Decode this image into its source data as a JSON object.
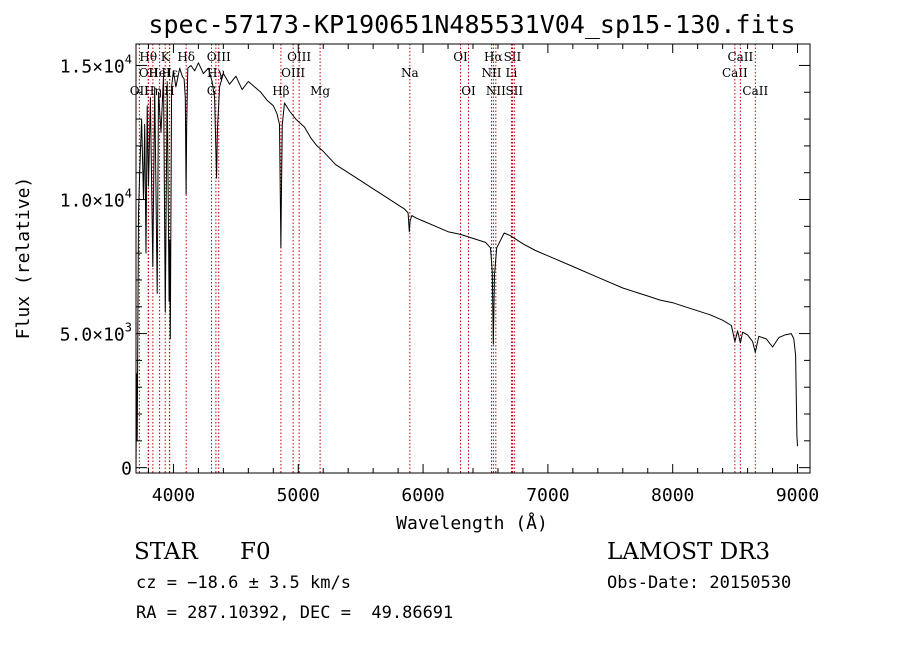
{
  "chart_data": {
    "type": "line",
    "title": "spec-57173-KP190651N485531V04_sp15-130.fits",
    "xlabel": "Wavelength (Å)",
    "ylabel": "Flux (relative)",
    "xlim": [
      3700,
      9100
    ],
    "ylim": [
      -200,
      15800
    ],
    "x_ticks": [
      4000,
      5000,
      6000,
      7000,
      8000,
      9000
    ],
    "x_tick_labels": [
      "4000",
      "5000",
      "6000",
      "7000",
      "8000",
      "9000"
    ],
    "y_ticks": [
      0,
      5000,
      10000,
      15000
    ],
    "y_tick_labels": [
      {
        "mant": "0",
        "exp": ""
      },
      {
        "mant": "5.0×10",
        "exp": "3"
      },
      {
        "mant": "1.0×10",
        "exp": "4"
      },
      {
        "mant": "1.5×10",
        "exp": "4"
      }
    ],
    "series": [
      {
        "name": "spectrum",
        "color": "#000000",
        "x": [
          3700,
          3705,
          3710,
          3720,
          3730,
          3745,
          3760,
          3770,
          3780,
          3790,
          3800,
          3815,
          3835,
          3850,
          3870,
          3880,
          3900,
          3920,
          3935,
          3950,
          3965,
          3970,
          3975,
          3985,
          4000,
          4020,
          4050,
          4070,
          4085,
          4095,
          4101,
          4106,
          4115,
          4140,
          4170,
          4200,
          4240,
          4280,
          4310,
          4330,
          4340,
          4346,
          4352,
          4370,
          4400,
          4450,
          4500,
          4550,
          4600,
          4650,
          4700,
          4750,
          4800,
          4830,
          4850,
          4858,
          4861,
          4864,
          4872,
          4890,
          4930,
          4980,
          5050,
          5100,
          5150,
          5200,
          5300,
          5400,
          5500,
          5600,
          5700,
          5800,
          5850,
          5880,
          5890,
          5896,
          5910,
          5950,
          6000,
          6100,
          6200,
          6300,
          6400,
          6500,
          6540,
          6555,
          6563,
          6572,
          6590,
          6650,
          6700,
          6800,
          6900,
          7000,
          7200,
          7400,
          7600,
          7800,
          7900,
          8000,
          8100,
          8200,
          8300,
          8400,
          8470,
          8498,
          8520,
          8542,
          8560,
          8600,
          8640,
          8662,
          8690,
          8750,
          8800,
          8850,
          8900,
          8950,
          8970,
          8985,
          8995,
          9000
        ],
        "y": [
          -200,
          3500,
          1000,
          9500,
          11000,
          13000,
          10000,
          12800,
          8000,
          13500,
          10500,
          13800,
          7500,
          14200,
          6500,
          14000,
          12500,
          14600,
          5800,
          14400,
          6200,
          8500,
          4800,
          14200,
          14800,
          14200,
          14900,
          14600,
          14500,
          13800,
          10200,
          12800,
          14900,
          15000,
          14800,
          15100,
          14700,
          14900,
          14400,
          13800,
          11800,
          10800,
          12600,
          14200,
          14700,
          14300,
          14600,
          14100,
          14400,
          14200,
          14000,
          13700,
          13500,
          13200,
          12800,
          9500,
          8200,
          9800,
          12800,
          13600,
          13300,
          13000,
          12700,
          12300,
          12000,
          11800,
          11300,
          11000,
          10700,
          10400,
          10100,
          9800,
          9650,
          9500,
          8800,
          9200,
          9400,
          9300,
          9200,
          9000,
          8800,
          8700,
          8550,
          8400,
          8200,
          7300,
          4600,
          7200,
          8200,
          8750,
          8650,
          8350,
          8100,
          7900,
          7500,
          7100,
          6700,
          6400,
          6250,
          6150,
          6000,
          5850,
          5700,
          5500,
          5300,
          4700,
          5100,
          4650,
          5050,
          4950,
          4700,
          4300,
          4900,
          4800,
          4500,
          4850,
          4950,
          5000,
          4800,
          4200,
          1200,
          800
        ]
      }
    ],
    "emission_lines": [
      {
        "label": "OII",
        "x": 3727,
        "row": 3
      },
      {
        "label": "Hθ",
        "x": 3798,
        "row": 1
      },
      {
        "label": "OII",
        "x": 3800,
        "row": 2
      },
      {
        "label": "Hη",
        "x": 3835,
        "row": 3
      },
      {
        "label": "HeI",
        "x": 3889,
        "row": 2
      },
      {
        "label": "K",
        "x": 3934,
        "row": 1
      },
      {
        "label": "H",
        "x": 3968,
        "row": 3
      },
      {
        "label": "Hε",
        "x": 3970,
        "row": 2
      },
      {
        "label": "Hδ",
        "x": 4102,
        "row": 1
      },
      {
        "label": "G",
        "x": 4305,
        "row": 3
      },
      {
        "label": "Hγ",
        "x": 4340,
        "row": 2
      },
      {
        "label": "OIII",
        "x": 4363,
        "row": 1
      },
      {
        "label": "Hβ",
        "x": 4861,
        "row": 3
      },
      {
        "label": "OIII",
        "x": 4959,
        "row": 2
      },
      {
        "label": "OIII",
        "x": 5007,
        "row": 1
      },
      {
        "label": "Mg",
        "x": 5175,
        "row": 3
      },
      {
        "label": "Na",
        "x": 5894,
        "row": 2
      },
      {
        "label": "OI",
        "x": 6300,
        "row": 1
      },
      {
        "label": "OI",
        "x": 6364,
        "row": 3
      },
      {
        "label": "NII",
        "x": 6548,
        "row": 2
      },
      {
        "label": "Hα",
        "x": 6563,
        "row": 1
      },
      {
        "label": "NII",
        "x": 6583,
        "row": 3
      },
      {
        "label": "Li",
        "x": 6708,
        "row": 2
      },
      {
        "label": "SII",
        "x": 6716,
        "row": 1
      },
      {
        "label": "SII",
        "x": 6731,
        "row": 3
      },
      {
        "label": "CaII",
        "x": 8498,
        "row": 2
      },
      {
        "label": "CaII",
        "x": 8542,
        "row": 1
      },
      {
        "label": "CaII",
        "x": 8662,
        "row": 3
      }
    ],
    "line_color": "#c00000"
  },
  "info": {
    "obj_class": "STAR",
    "subclass": "F0",
    "redshift": "cz = −18.6 ± 3.5 km/s",
    "coords": "RA = 287.10392, DEC =  49.86691",
    "survey": "LAMOST DR3",
    "obs_date": "Obs-Date: 20150530"
  }
}
